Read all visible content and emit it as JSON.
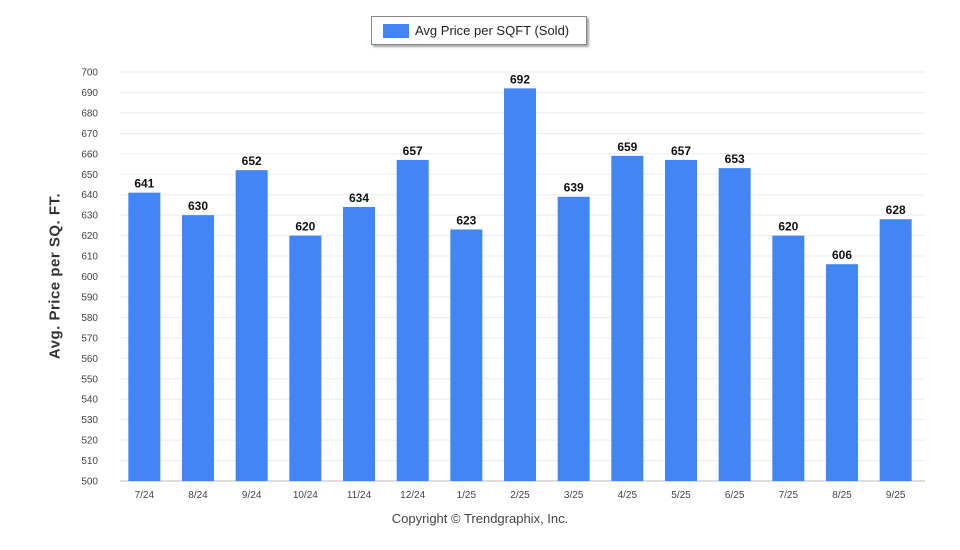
{
  "chart_data": {
    "type": "bar",
    "title": "",
    "xlabel": "",
    "ylabel": "Avg. Price per SQ. FT.",
    "categories": [
      "7/24",
      "8/24",
      "9/24",
      "10/24",
      "11/24",
      "12/24",
      "1/25",
      "2/25",
      "3/25",
      "4/25",
      "5/25",
      "6/25",
      "7/25",
      "8/25",
      "9/25"
    ],
    "series": [
      {
        "name": "Avg Price per SQFT (Sold)",
        "values": [
          641,
          630,
          652,
          620,
          634,
          657,
          623,
          692,
          639,
          659,
          657,
          653,
          620,
          606,
          628
        ]
      }
    ],
    "ylim": [
      500,
      700
    ],
    "ytick_step": 10,
    "grid": true,
    "legend_position": "top-center",
    "bar_color": "#4285f4",
    "data_labels": true
  },
  "footer": {
    "copyright": "Copyright © Trendgraphix, Inc."
  }
}
